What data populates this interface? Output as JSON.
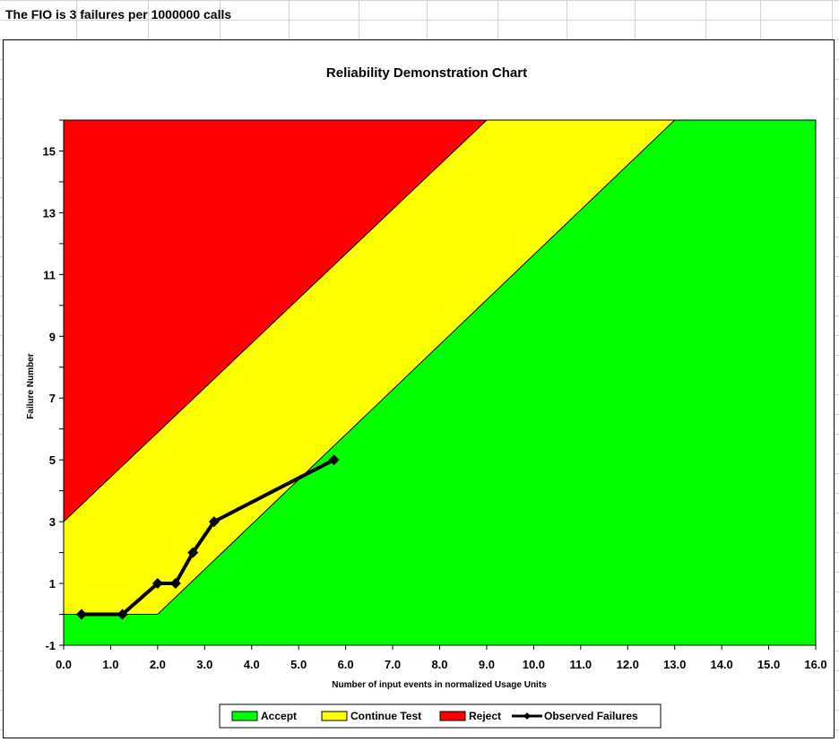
{
  "sheet": {
    "cell_text": "The FIO is 3 failures per 1000000 calls"
  },
  "chart_data": {
    "type": "area",
    "title": "Reliability Demonstration Chart",
    "xlabel": "Number of input events in normalized Usage Units",
    "ylabel": "Failure Number",
    "xlim": [
      0,
      16
    ],
    "ylim": [
      -1,
      16
    ],
    "x_ticks": [
      "0.0",
      "1.0",
      "2.0",
      "3.0",
      "4.0",
      "5.0",
      "6.0",
      "7.0",
      "8.0",
      "9.0",
      "10.0",
      "11.0",
      "12.0",
      "13.0",
      "14.0",
      "15.0",
      "16.0"
    ],
    "y_ticks": [
      -1,
      1,
      3,
      5,
      7,
      9,
      11,
      13,
      15
    ],
    "regions": [
      {
        "name": "Accept",
        "color": "#00FF00"
      },
      {
        "name": "Continue Test",
        "color": "#FFFF00"
      },
      {
        "name": "Reject",
        "color": "#FF0000"
      }
    ],
    "reject_boundary": {
      "x": [
        0,
        9.0
      ],
      "y": [
        3,
        16
      ]
    },
    "accept_boundary": {
      "x": [
        0,
        2.0,
        13.0
      ],
      "y": [
        0,
        0,
        16
      ]
    },
    "series": [
      {
        "name": "Observed Failures",
        "color": "#000000",
        "x": [
          0.38,
          1.25,
          2.0,
          2.38,
          2.75,
          3.2,
          5.75
        ],
        "y": [
          0,
          0,
          1,
          1,
          2,
          3,
          5
        ]
      }
    ],
    "legend": {
      "position": "bottom",
      "entries": [
        "Accept",
        "Continue Test",
        "Reject",
        "Observed Failures"
      ]
    }
  }
}
